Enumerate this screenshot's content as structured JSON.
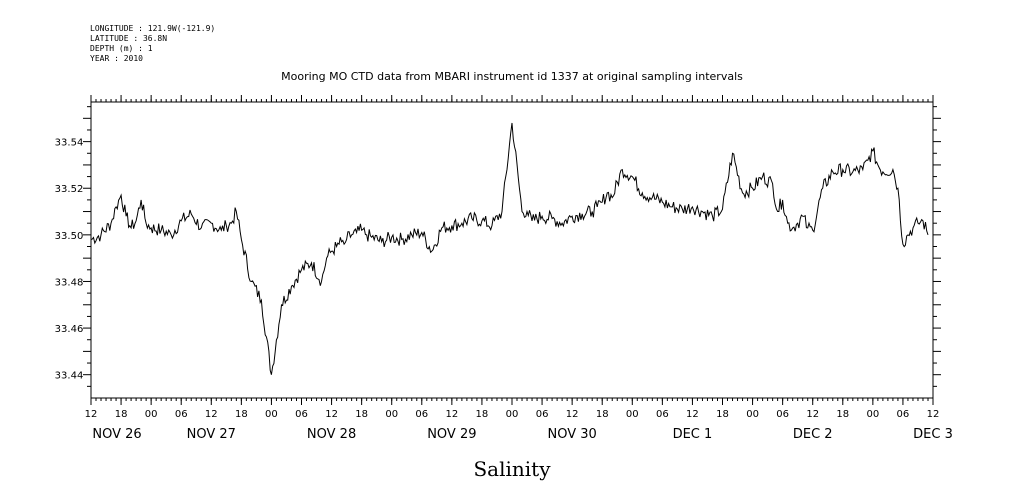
{
  "header": {
    "longitude": "LONGITUDE : 121.9W(-121.9)",
    "latitude": "LATITUDE : 36.8N",
    "depth": "DEPTH (m) : 1",
    "year": "YEAR : 2010"
  },
  "chart_data": {
    "type": "line",
    "title": "Mooring MO CTD data from MBARI instrument id 1337 at original sampling intervals",
    "xlabel": "Salinity",
    "ylabel": "",
    "x_unit": "hours since NOV 26 12:00, 2010",
    "xlim": [
      0,
      168
    ],
    "ylim": [
      33.43,
      33.557
    ],
    "yticks": [
      33.44,
      33.46,
      33.48,
      33.5,
      33.52,
      33.54
    ],
    "ytick_labels": [
      "33.44",
      "33.46",
      "33.48",
      "33.50",
      "33.52",
      "33.54"
    ],
    "xtick_labels": [
      "12",
      "18",
      "00",
      "06",
      "12",
      "18",
      "00",
      "06",
      "12",
      "18",
      "00",
      "06",
      "12",
      "18",
      "00",
      "06",
      "12",
      "18",
      "00",
      "06",
      "12",
      "18",
      "00",
      "06",
      "12",
      "18",
      "00",
      "06",
      "12"
    ],
    "day_labels": [
      "NOV 26",
      "NOV 27",
      "NOV 28",
      "NOV 29",
      "NOV 30",
      "DEC  1",
      "DEC  2",
      "DEC  3"
    ],
    "line_color": "#000000",
    "grid": false,
    "series": [
      {
        "x": [
          0,
          2,
          4,
          5,
          6,
          7,
          8,
          9,
          10,
          11,
          12,
          14,
          16,
          18,
          20,
          22,
          24,
          26,
          27,
          28,
          29,
          30,
          32,
          34,
          36,
          38,
          40,
          42,
          44,
          46,
          47,
          48,
          49,
          50,
          50.5,
          51,
          52,
          53,
          54,
          55,
          56,
          58,
          60,
          62,
          64,
          66,
          68,
          70,
          72,
          74,
          76,
          78,
          80,
          82,
          84,
          86,
          87,
          88,
          90,
          92,
          94,
          96,
          98,
          100,
          101,
          102,
          103,
          104,
          106,
          108,
          110,
          112,
          114,
          116,
          118,
          120,
          122,
          124,
          126,
          128,
          130,
          132,
          134,
          136,
          137,
          138,
          139,
          140,
          141,
          142,
          143,
          144,
          146,
          148,
          150,
          152,
          154,
          155,
          156,
          157,
          158,
          160,
          161,
          162,
          163,
          164,
          165,
          166,
          167
        ],
        "y": [
          33.498,
          33.5,
          33.505,
          33.512,
          33.517,
          33.508,
          33.503,
          33.506,
          33.515,
          33.505,
          33.503,
          33.502,
          33.5,
          33.506,
          33.509,
          33.503,
          33.505,
          33.502,
          33.504,
          33.505,
          33.51,
          33.498,
          33.48,
          33.472,
          33.44,
          33.47,
          33.478,
          33.485,
          33.488,
          33.48,
          33.49,
          33.493,
          33.495,
          33.497,
          33.496,
          33.498,
          33.5,
          33.501,
          33.502,
          33.5,
          33.499,
          33.497,
          33.499,
          33.498,
          33.5,
          33.501,
          33.493,
          33.503,
          33.504,
          33.505,
          33.507,
          33.506,
          33.504,
          33.51,
          33.548,
          33.51,
          33.51,
          33.506,
          33.508,
          33.507,
          33.505,
          33.508,
          33.509,
          33.51,
          33.512,
          33.514,
          33.518,
          33.516,
          33.528,
          33.525,
          33.518,
          33.516,
          33.514,
          33.512,
          33.511,
          33.512,
          33.51,
          33.508,
          33.511,
          33.535,
          33.518,
          33.52,
          33.525,
          33.522,
          33.51,
          33.515,
          33.505,
          33.503,
          33.505,
          33.508,
          33.503,
          33.502,
          33.52,
          33.527,
          33.528,
          33.527,
          33.528,
          33.532,
          33.536,
          33.53,
          33.527,
          33.528,
          33.52,
          33.496,
          33.5,
          33.503,
          33.505,
          33.506,
          33.5
        ]
      }
    ]
  }
}
